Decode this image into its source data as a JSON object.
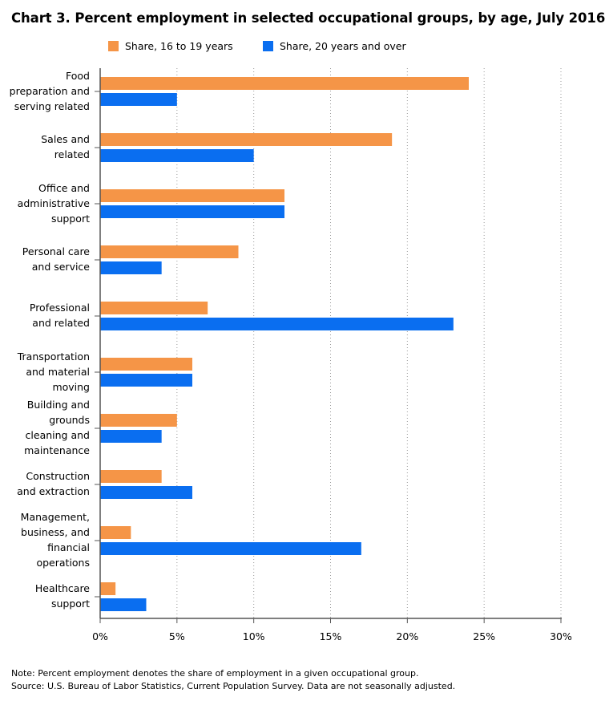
{
  "chart_data": {
    "type": "bar",
    "orientation": "horizontal",
    "title": "Chart 3. Percent employment in selected occupational groups, by age, July 2016",
    "categories": [
      [
        "Food",
        "preparation and",
        "serving related"
      ],
      [
        "Sales and",
        "related"
      ],
      [
        "Office and",
        "administrative",
        "support"
      ],
      [
        "Personal care",
        "and service"
      ],
      [
        "Professional",
        "and related"
      ],
      [
        "Transportation",
        "and material",
        "moving"
      ],
      [
        "Building and",
        "grounds",
        "cleaning and",
        "maintenance"
      ],
      [
        "Construction",
        "and extraction"
      ],
      [
        "Management,",
        "business, and",
        "financial",
        "operations"
      ],
      [
        "Healthcare",
        "support"
      ]
    ],
    "series": [
      {
        "name": "Share, 16 to 19 years",
        "color": "#F59547",
        "values": [
          24,
          19,
          12,
          9,
          7,
          6,
          5,
          4,
          2,
          1
        ]
      },
      {
        "name": "Share, 20 years and over",
        "color": "#0A6EF0",
        "values": [
          5,
          10,
          12,
          4,
          23,
          6,
          4,
          6,
          17,
          3
        ]
      }
    ],
    "xlim": [
      0,
      30
    ],
    "xticks": [
      0,
      5,
      10,
      15,
      20,
      25,
      30
    ],
    "xtick_labels": [
      "0%",
      "5%",
      "10%",
      "15%",
      "20%",
      "25%",
      "30%"
    ],
    "xlabel": "",
    "ylabel": "",
    "grid": "vertical dotted",
    "legend": "top"
  },
  "notes": {
    "note": "Note: Percent employment denotes the share of employment in a given occupational group.",
    "source": "Source: U.S. Bureau of Labor Statistics, Current Population Survey. Data are not seasonally adjusted."
  }
}
